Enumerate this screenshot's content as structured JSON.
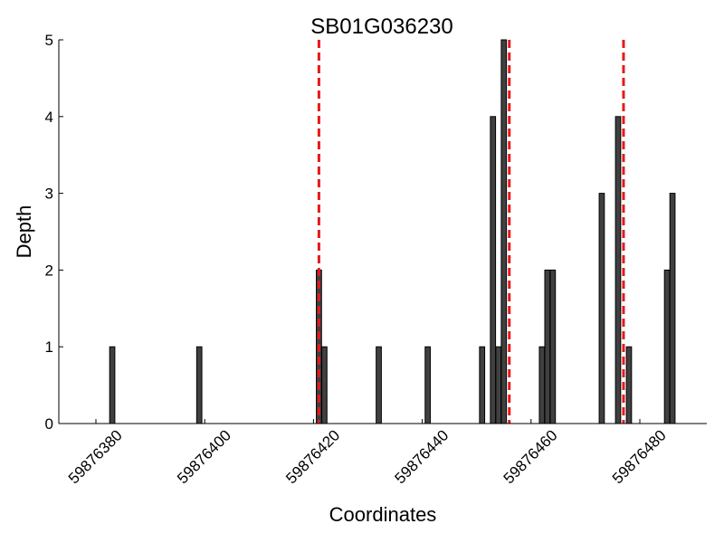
{
  "chart_data": {
    "type": "bar",
    "title": "SB01G036230",
    "xlabel": "Coordinates",
    "ylabel": "Depth",
    "xlim": [
      59876373,
      59876482
    ],
    "ylim": [
      0,
      5
    ],
    "x_ticks": [
      59876380,
      59876400,
      59876420,
      59876440,
      59876460,
      59876480
    ],
    "y_ticks": [
      0,
      1,
      2,
      3,
      4,
      5
    ],
    "grid": false,
    "bar_color": "#404040",
    "marker_color": "#e41a1c",
    "bars": [
      {
        "x": 59876383,
        "value": 1
      },
      {
        "x": 59876399,
        "value": 1
      },
      {
        "x": 59876421,
        "value": 2
      },
      {
        "x": 59876422,
        "value": 1
      },
      {
        "x": 59876432,
        "value": 1
      },
      {
        "x": 59876441,
        "value": 1
      },
      {
        "x": 59876451,
        "value": 1
      },
      {
        "x": 59876453,
        "value": 4
      },
      {
        "x": 59876454,
        "value": 1
      },
      {
        "x": 59876455,
        "value": 5
      },
      {
        "x": 59876462,
        "value": 1
      },
      {
        "x": 59876463,
        "value": 2
      },
      {
        "x": 59876464,
        "value": 2
      },
      {
        "x": 59876473,
        "value": 3
      },
      {
        "x": 59876476,
        "value": 4
      },
      {
        "x": 59876478,
        "value": 1
      },
      {
        "x": 59876485,
        "value": 2
      },
      {
        "x": 59876486,
        "value": 3
      }
    ],
    "markers": [
      59876421,
      59876456,
      59876477
    ]
  }
}
